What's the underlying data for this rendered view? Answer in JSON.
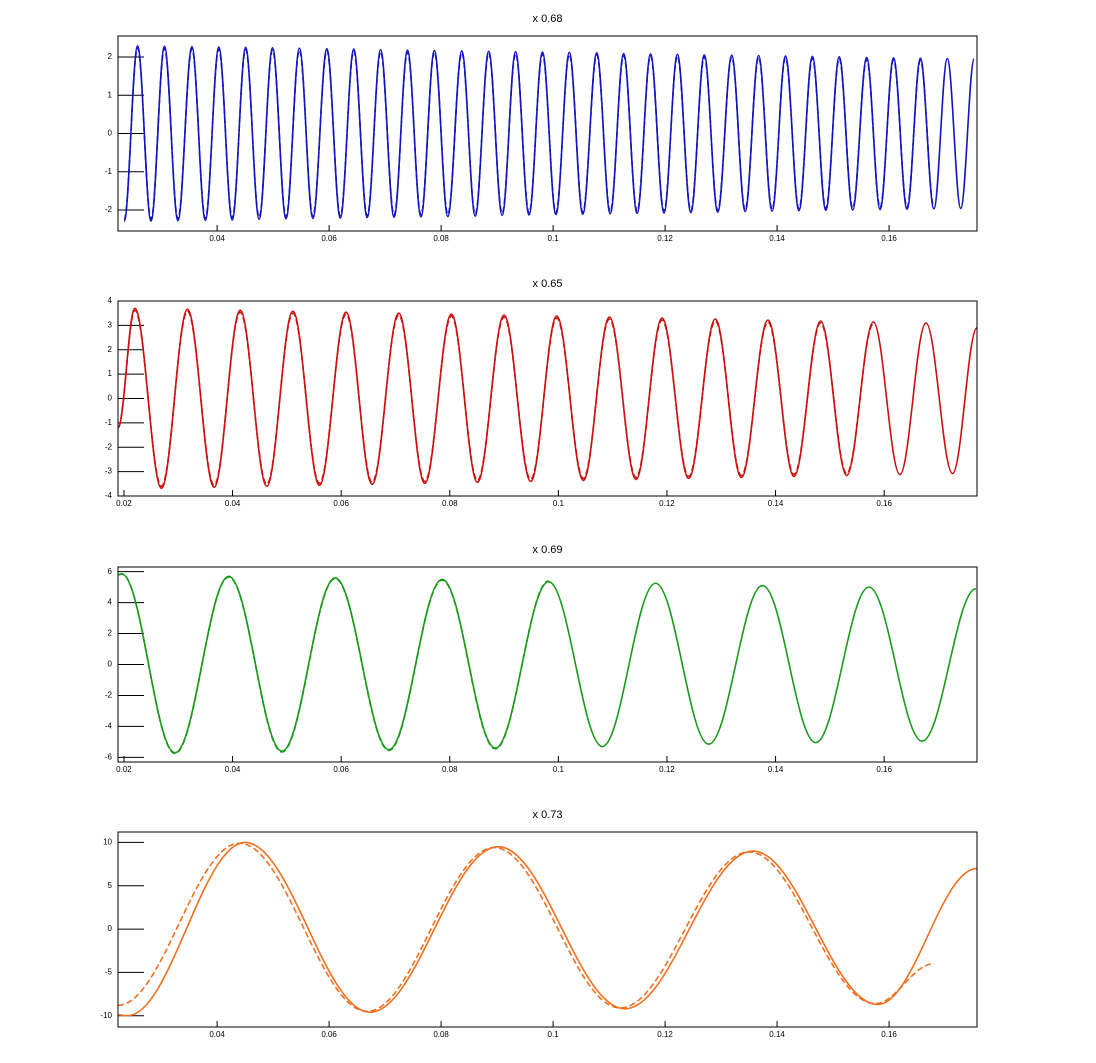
{
  "chart_data": [
    {
      "type": "line",
      "title": "x 0.68",
      "xlim": [
        0.0223,
        0.1757
      ],
      "xticks": [
        0.04,
        0.06,
        0.08,
        0.1,
        0.12,
        0.14,
        0.16
      ],
      "ylim": [
        -2.55,
        2.55
      ],
      "yticks": [
        -2,
        -1,
        0,
        1,
        2
      ],
      "x": [
        0.0234,
        0.0258,
        0.0282,
        0.0306,
        0.033,
        0.0355,
        0.0379,
        0.0403,
        0.0427,
        0.0451,
        0.0475,
        0.0499,
        0.0523,
        0.0547,
        0.0571,
        0.0596,
        0.062,
        0.0644,
        0.0668,
        0.0692,
        0.0716,
        0.074,
        0.0764,
        0.0788,
        0.0812,
        0.0837,
        0.0861,
        0.0885,
        0.0909,
        0.0933,
        0.0957,
        0.0981,
        0.1005,
        0.1029,
        0.1053,
        0.1078,
        0.1102,
        0.1126,
        0.115,
        0.1174,
        0.1198,
        0.1222,
        0.1246,
        0.127,
        0.1294,
        0.1319,
        0.1343,
        0.1367,
        0.1391,
        0.1415,
        0.1439,
        0.1463,
        0.1487,
        0.1511,
        0.1535,
        0.156,
        0.1584,
        0.1608,
        0.1632,
        0.1656,
        0.168,
        0.1704,
        0.1728,
        0.1752
      ],
      "series": [
        {
          "color": "#1414c0",
          "line_style": "solid",
          "values": [
            -2.3,
            2.29,
            -2.29,
            2.28,
            -2.28,
            2.27,
            -2.27,
            2.26,
            -2.26,
            2.25,
            -2.24,
            2.24,
            -2.23,
            2.23,
            -2.22,
            2.22,
            -2.21,
            2.21,
            -2.2,
            2.19,
            -2.19,
            2.18,
            -2.18,
            2.17,
            -2.17,
            2.16,
            -2.16,
            2.15,
            -2.14,
            2.14,
            -2.13,
            2.13,
            -2.12,
            2.12,
            -2.11,
            2.11,
            -2.1,
            2.09,
            -2.09,
            2.08,
            -2.08,
            2.07,
            -2.07,
            2.06,
            -2.06,
            2.05,
            -2.04,
            2.04,
            -2.03,
            2.03,
            -2.02,
            2.02,
            -2.01,
            2.01,
            -2.0,
            1.99,
            -1.99,
            1.98,
            -1.98,
            1.97,
            -1.97,
            1.96,
            -1.96,
            1.95
          ]
        },
        {
          "color": "#1414c0",
          "line_style": "dashed",
          "values": [
            -2.25,
            2.24,
            -2.24,
            2.23,
            -2.23,
            2.22,
            -2.22,
            2.21,
            -2.21,
            2.2,
            -2.19,
            2.19,
            -2.18,
            2.18,
            -2.17,
            2.17,
            -2.16,
            2.16,
            -2.15,
            2.14,
            -2.14,
            2.13,
            -2.13,
            2.12,
            -2.12,
            2.11,
            -2.11,
            2.1,
            -2.09,
            2.09,
            -2.08,
            2.08,
            -2.07,
            2.07,
            -2.06,
            2.06,
            -2.05,
            2.04,
            -2.04,
            2.03,
            -2.03,
            2.02,
            -2.02,
            2.01,
            -2.01,
            2.0,
            -1.99,
            1.99,
            -1.98,
            1.98,
            -1.97,
            1.97,
            -1.96,
            1.96,
            -1.95,
            1.94,
            -1.94,
            1.93,
            -1.93,
            1.92,
            -1.92,
            null,
            null,
            null
          ]
        }
      ]
    },
    {
      "type": "line",
      "title": "x 0.65",
      "xlim": [
        0.0189,
        0.1771
      ],
      "xticks": [
        0.02,
        0.04,
        0.06,
        0.08,
        0.1,
        0.12,
        0.14,
        0.16
      ],
      "ylim": [
        -4,
        4
      ],
      "yticks": [
        -4,
        -3,
        -2,
        -1,
        0,
        1,
        2,
        3,
        4
      ],
      "x": [
        0.0189,
        0.022,
        0.0269,
        0.0317,
        0.0366,
        0.0414,
        0.0463,
        0.0511,
        0.056,
        0.0609,
        0.0657,
        0.0706,
        0.0754,
        0.0803,
        0.0851,
        0.09,
        0.0949,
        0.0997,
        0.1046,
        0.1094,
        0.1143,
        0.1191,
        0.124,
        0.1289,
        0.1337,
        0.1386,
        0.1434,
        0.1483,
        0.1531,
        0.158,
        0.1629,
        0.1677,
        0.1726,
        0.1771
      ],
      "series": [
        {
          "color": "#cc1010",
          "line_style": "solid",
          "values": [
            -1.2,
            3.7,
            -3.68,
            3.66,
            -3.64,
            3.62,
            -3.6,
            3.58,
            -3.56,
            3.54,
            -3.52,
            3.5,
            -3.48,
            3.46,
            -3.44,
            3.42,
            -3.4,
            3.38,
            -3.36,
            3.34,
            -3.32,
            3.3,
            -3.28,
            3.26,
            -3.24,
            3.22,
            -3.2,
            3.18,
            -3.16,
            3.14,
            -3.12,
            3.1,
            -3.08,
            2.9
          ]
        },
        {
          "color": "#cc1010",
          "line_style": "dashed",
          "values": [
            -1.2,
            3.62,
            -3.6,
            3.58,
            -3.56,
            3.54,
            -3.52,
            3.5,
            -3.48,
            3.46,
            -3.44,
            3.42,
            -3.4,
            3.38,
            -3.36,
            3.34,
            -3.32,
            3.3,
            -3.28,
            3.26,
            -3.24,
            3.22,
            -3.2,
            3.18,
            -3.16,
            3.14,
            -3.12,
            3.1,
            -3.08,
            3.06,
            null,
            null,
            null,
            null
          ]
        }
      ]
    },
    {
      "type": "line",
      "title": "x 0.69",
      "xlim": [
        0.0189,
        0.1771
      ],
      "xticks": [
        0.02,
        0.04,
        0.06,
        0.08,
        0.1,
        0.12,
        0.14,
        0.16
      ],
      "ylim": [
        -6.3,
        6.3
      ],
      "yticks": [
        -6,
        -4,
        -2,
        0,
        2,
        4,
        6
      ],
      "x": [
        0.0189,
        0.0196,
        0.0294,
        0.0393,
        0.0491,
        0.0589,
        0.0688,
        0.0786,
        0.0884,
        0.0982,
        0.1081,
        0.1179,
        0.1277,
        0.1376,
        0.1474,
        0.1572,
        0.167,
        0.1769
      ],
      "series": [
        {
          "color": "#1a9a1a",
          "line_style": "solid",
          "values": [
            5.8,
            5.85,
            -5.7,
            5.7,
            -5.6,
            5.6,
            -5.5,
            5.5,
            -5.4,
            5.35,
            -5.3,
            5.25,
            -5.15,
            5.1,
            -5.05,
            5.0,
            -4.95,
            4.9
          ]
        },
        {
          "color": "#1a9a1a",
          "line_style": "dashed",
          "values": [
            5.8,
            5.85,
            -5.75,
            5.65,
            -5.65,
            5.55,
            -5.55,
            5.45,
            -5.45,
            5.4,
            null,
            null,
            null,
            null,
            null,
            null,
            null,
            null
          ]
        }
      ]
    },
    {
      "type": "line",
      "title": "x 0.73",
      "xlim": [
        0.0223,
        0.1757
      ],
      "xticks": [
        0.04,
        0.06,
        0.08,
        0.1,
        0.12,
        0.14,
        0.16
      ],
      "ylim": [
        -11.3,
        11.2
      ],
      "yticks": [
        -10,
        -5,
        0,
        5,
        10
      ],
      "x": [
        0.0223,
        0.024,
        0.045,
        0.0673,
        0.0902,
        0.1128,
        0.1357,
        0.158,
        0.1757
      ],
      "series": [
        {
          "color": "#f07020",
          "line_style": "solid",
          "values": [
            -9.9,
            -10.0,
            10.0,
            -9.6,
            9.5,
            -9.2,
            9.0,
            -8.7,
            7.0
          ]
        },
        {
          "color": "#f07020",
          "line_style": "dashed",
          "x": [
            0.0223,
            0.044,
            0.0668,
            0.0895,
            0.112,
            0.135,
            0.1575,
            0.168
          ],
          "values": [
            -8.8,
            9.9,
            -9.5,
            9.4,
            -9.1,
            8.9,
            -8.6,
            -4.0
          ]
        }
      ]
    }
  ]
}
